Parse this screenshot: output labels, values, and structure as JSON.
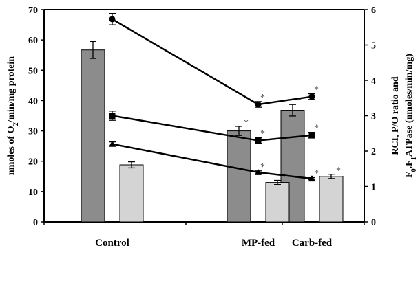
{
  "chart_data": {
    "type": "bar",
    "categories": [
      "Control",
      "MP-fed",
      "Carb-fed"
    ],
    "left_axis": {
      "label_parts": [
        "nmoles of O",
        "2",
        "/min/mg protein"
      ],
      "ylim": [
        0,
        70
      ],
      "ticks": [
        "0",
        "10",
        "20",
        "30",
        "40",
        "50",
        "60",
        "70"
      ]
    },
    "right_axis": {
      "label_line1": "RCI, P/O ratio and",
      "label_line2_parts": [
        "F",
        "0",
        ".F",
        "1",
        "ATPase (nmoles/min/mg)"
      ],
      "ylim": [
        0,
        6
      ],
      "ticks": [
        "0",
        "1",
        "2",
        "3",
        "4",
        "5",
        "6"
      ]
    },
    "bar_series": [
      {
        "fill": "#8c8c8c",
        "axis": "left",
        "values": [
          56.7,
          30.0,
          36.8
        ],
        "errors": [
          2.8,
          1.5,
          1.9
        ],
        "significant": [
          false,
          true,
          true
        ]
      },
      {
        "fill": "#d4d4d4",
        "axis": "left",
        "values": [
          18.8,
          13.0,
          15.0
        ],
        "errors": [
          1.0,
          0.7,
          0.7
        ],
        "significant": [
          false,
          true,
          true
        ]
      }
    ],
    "line_series": [
      {
        "marker": "circle",
        "axis": "right",
        "values": [
          5.73,
          3.32,
          3.54
        ],
        "errors": [
          0.16,
          0.08,
          0.08
        ],
        "significant": [
          false,
          true,
          true
        ]
      },
      {
        "marker": "square",
        "axis": "right",
        "values": [
          3.0,
          2.3,
          2.45
        ],
        "errors": [
          0.13,
          0.08,
          0.08
        ],
        "significant": [
          false,
          true,
          true
        ]
      },
      {
        "marker": "triangle",
        "axis": "right",
        "values": [
          2.2,
          1.4,
          1.22
        ],
        "errors": [
          0.06,
          0.04,
          0.03
        ],
        "significant": [
          false,
          true,
          true
        ]
      }
    ],
    "significance_marker": "*",
    "grid": false,
    "legend": "none"
  }
}
